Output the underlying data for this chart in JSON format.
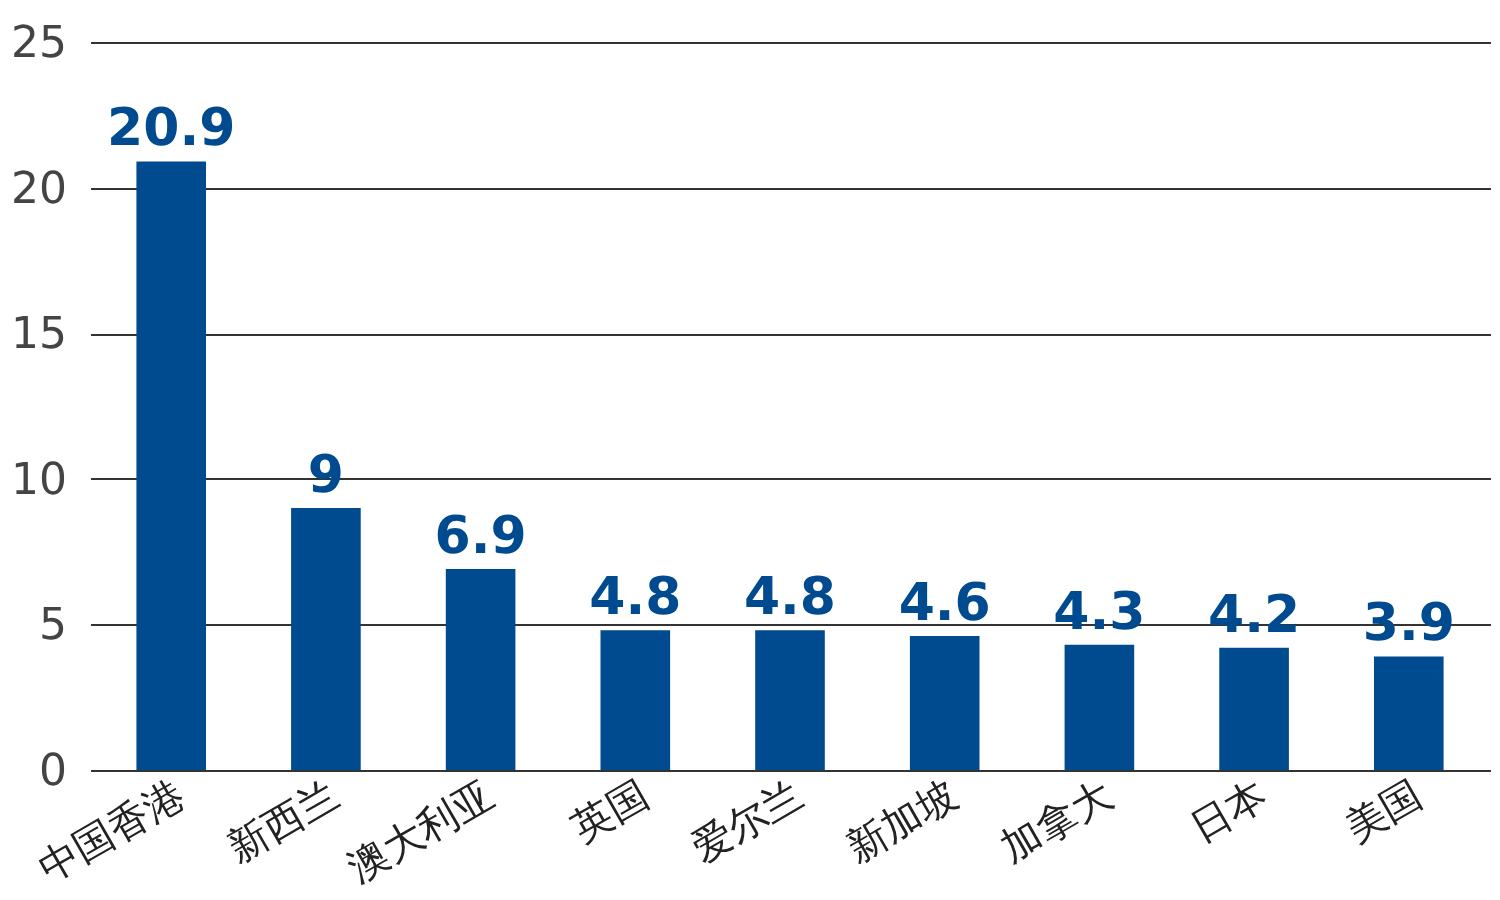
{
  "chart_data": {
    "type": "bar",
    "categories": [
      "中国香港",
      "新西兰",
      "澳大利亚",
      "英国",
      "爱尔兰",
      "新加坡",
      "加拿大",
      "日本",
      "美国"
    ],
    "values": [
      20.9,
      9,
      6.9,
      4.8,
      4.8,
      4.6,
      4.3,
      4.2,
      3.9
    ],
    "color": "#004b8f",
    "ylim": [
      0,
      25
    ],
    "yticks": [
      0,
      5,
      10,
      15,
      20,
      25
    ],
    "grid": "y",
    "data_labels": true
  }
}
